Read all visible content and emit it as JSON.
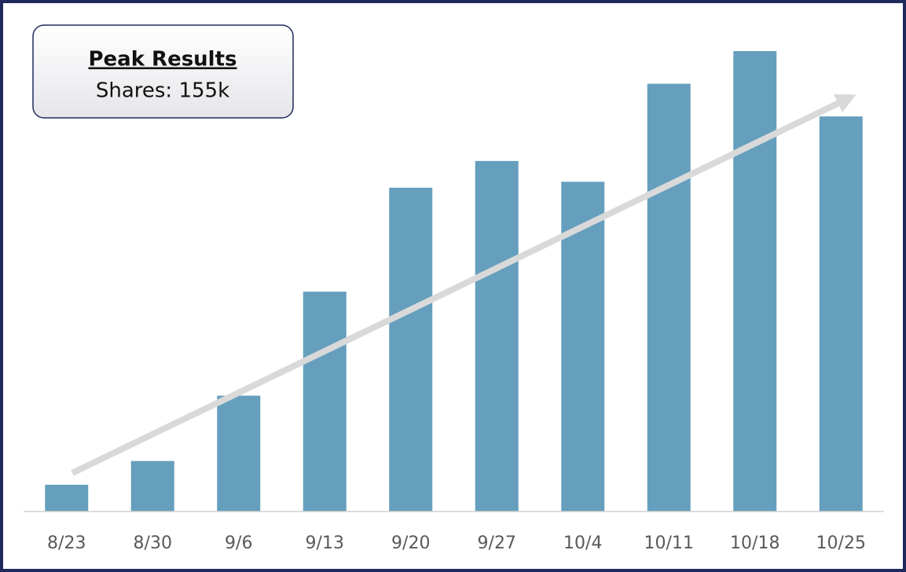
{
  "chart_data": {
    "type": "bar",
    "annotation_title": "Peak Results",
    "annotation_text": "Shares: 155k",
    "categories": [
      "8/23",
      "8/30",
      "9/6",
      "9/13",
      "9/20",
      "9/27",
      "10/4",
      "10/11",
      "10/18",
      "10/25"
    ],
    "values": [
      9,
      17,
      39,
      74,
      109,
      118,
      111,
      144,
      155,
      133
    ],
    "color": "#659fbd",
    "ylim": [
      0,
      155
    ]
  }
}
